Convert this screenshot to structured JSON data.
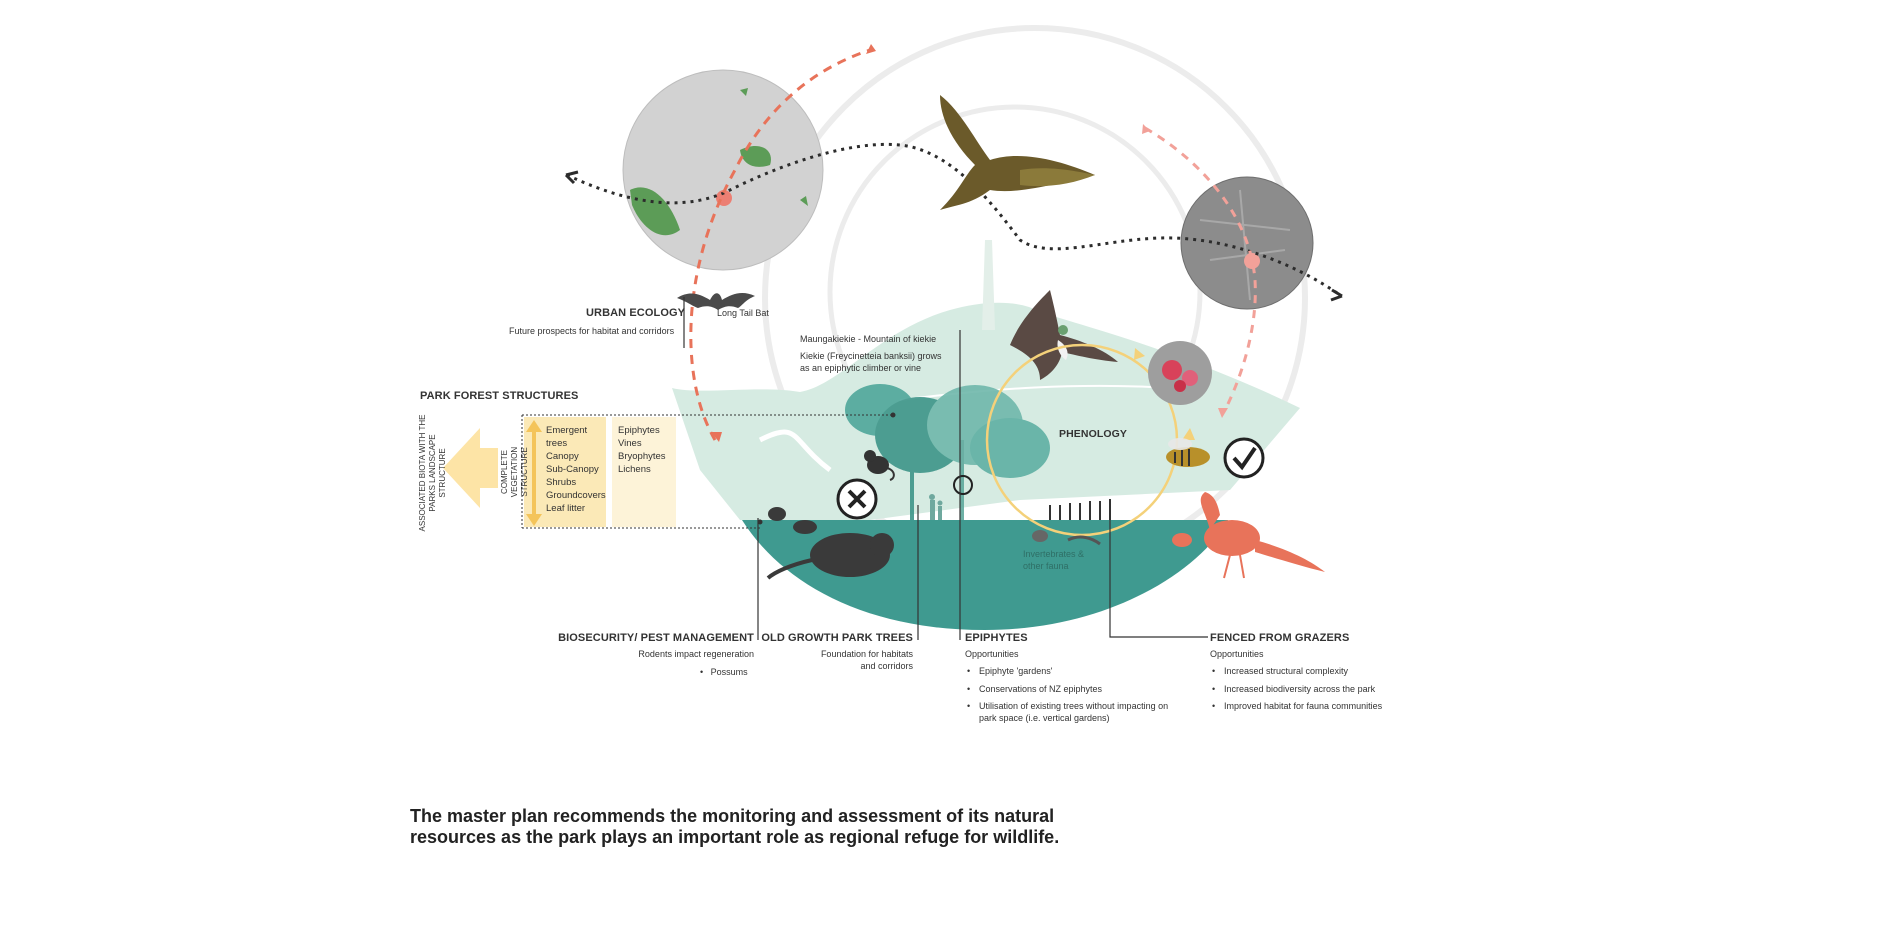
{
  "colors": {
    "teal": "#3f9a90",
    "mint": "#d6ebe2",
    "salmon": "#e8735a",
    "yellow": "#f4d17a",
    "veg_box": "#fbe9b7",
    "dark": "#3a3a3a"
  },
  "labels": {
    "urban_ecology": {
      "title": "URBAN ECOLOGY",
      "sub": "Future prospects for habitat and corridors",
      "bat": "Long Tail Bat"
    },
    "mountain": {
      "line1": "Maungakiekie - Mountain of kiekie",
      "line2": "Kiekie (Freycinetteia banksii) grows",
      "line3": "as an epiphytic climber or vine"
    },
    "park_forest": {
      "title": "PARK FOREST STRUCTURES",
      "associated": "ASSOCIATED BIOTA WITH THE PARKS LANDSCAPE STRUCTURE",
      "complete": "COMPLETE VEGETATION STRUCTURE",
      "structure": [
        "Emergent",
        "trees",
        "Canopy",
        "Sub-Canopy",
        "Shrubs",
        "Groundcovers",
        "Leaf litter"
      ],
      "biota": [
        "Epiphytes",
        "Vines",
        "Bryophytes",
        "Lichens"
      ]
    },
    "phenology": "PHENOLOGY",
    "invertebrates": {
      "line1": "Invertebrates &",
      "line2": "other fauna"
    },
    "biosecurity": {
      "title": "BIOSECURITY/ PEST MANAGEMENT",
      "sub": "Rodents impact regeneration",
      "items": [
        "Possums"
      ]
    },
    "old_growth": {
      "title": "OLD GROWTH PARK TREES",
      "line1": "Foundation for habitats",
      "line2": "and corridors"
    },
    "epiphytes": {
      "title": "EPIPHYTES",
      "sub": "Opportunities",
      "items": [
        "Epiphyte 'gardens'",
        "Conservations of NZ epiphytes",
        "Utilisation of existing trees without impacting on park space (i.e. vertical gardens)"
      ]
    },
    "fenced": {
      "title": "FENCED FROM GRAZERS",
      "sub": "Opportunities",
      "items": [
        "Increased structural complexity",
        "Increased biodiversity across the park",
        "Improved habitat for fauna communities"
      ]
    }
  },
  "caption": {
    "line1": "The master plan recommends the monitoring and assessment of its natural",
    "line2": "resources as the park plays an important role as regional refuge for wildlife."
  },
  "icons": [
    "globe-map-icon",
    "city-aerial-icon",
    "kaka-bird-icon",
    "pigeon-icon",
    "flower-photo-icon",
    "bee-icon",
    "pheasant-icon",
    "bat-icon",
    "rat-icon",
    "possum-icon",
    "cross-icon",
    "check-icon",
    "arrow-left-icon"
  ]
}
